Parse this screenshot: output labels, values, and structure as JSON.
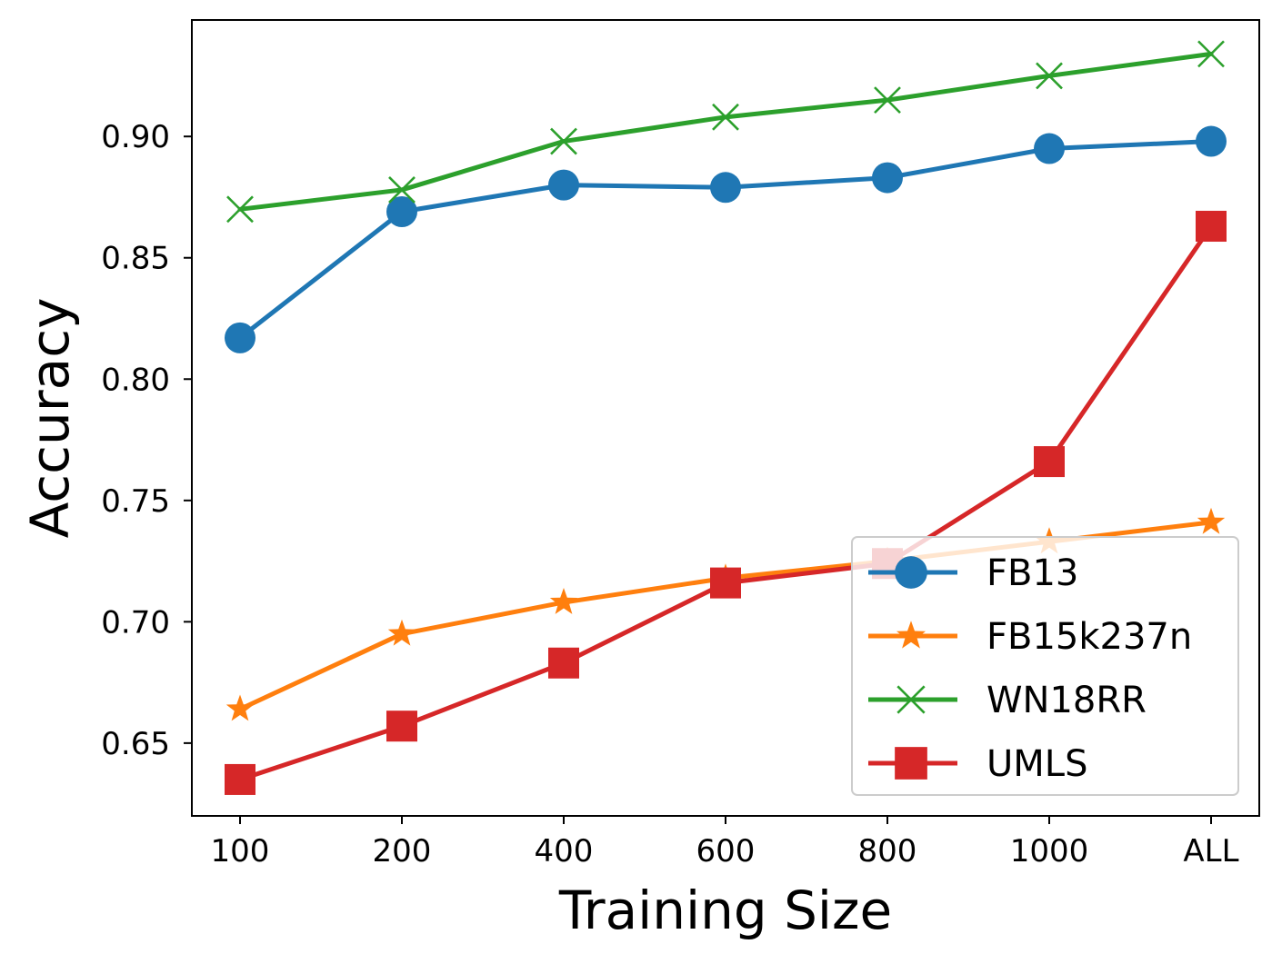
{
  "chart_data": {
    "type": "line",
    "title": "",
    "xlabel": "Training Size",
    "ylabel": "Accuracy",
    "categories": [
      "100",
      "200",
      "400",
      "600",
      "800",
      "1000",
      "ALL"
    ],
    "yticks": [
      "0.65",
      "0.70",
      "0.75",
      "0.80",
      "0.85",
      "0.90"
    ],
    "ylim": [
      0.62,
      0.948
    ],
    "legend_position": "lower-right",
    "series": [
      {
        "name": "FB13",
        "color": "#1f77b4",
        "marker": "circle",
        "values": [
          0.817,
          0.869,
          0.88,
          0.879,
          0.883,
          0.895,
          0.898
        ]
      },
      {
        "name": "FB15k237n",
        "color": "#ff7f0e",
        "marker": "star",
        "values": [
          0.664,
          0.695,
          0.708,
          0.718,
          0.725,
          0.733,
          0.741
        ]
      },
      {
        "name": "WN18RR",
        "color": "#2ca02c",
        "marker": "x",
        "values": [
          0.87,
          0.878,
          0.898,
          0.908,
          0.915,
          0.925,
          0.934
        ]
      },
      {
        "name": "UMLS",
        "color": "#d62728",
        "marker": "square",
        "values": [
          0.635,
          0.657,
          0.683,
          0.716,
          0.724,
          0.766,
          0.863
        ]
      }
    ]
  }
}
